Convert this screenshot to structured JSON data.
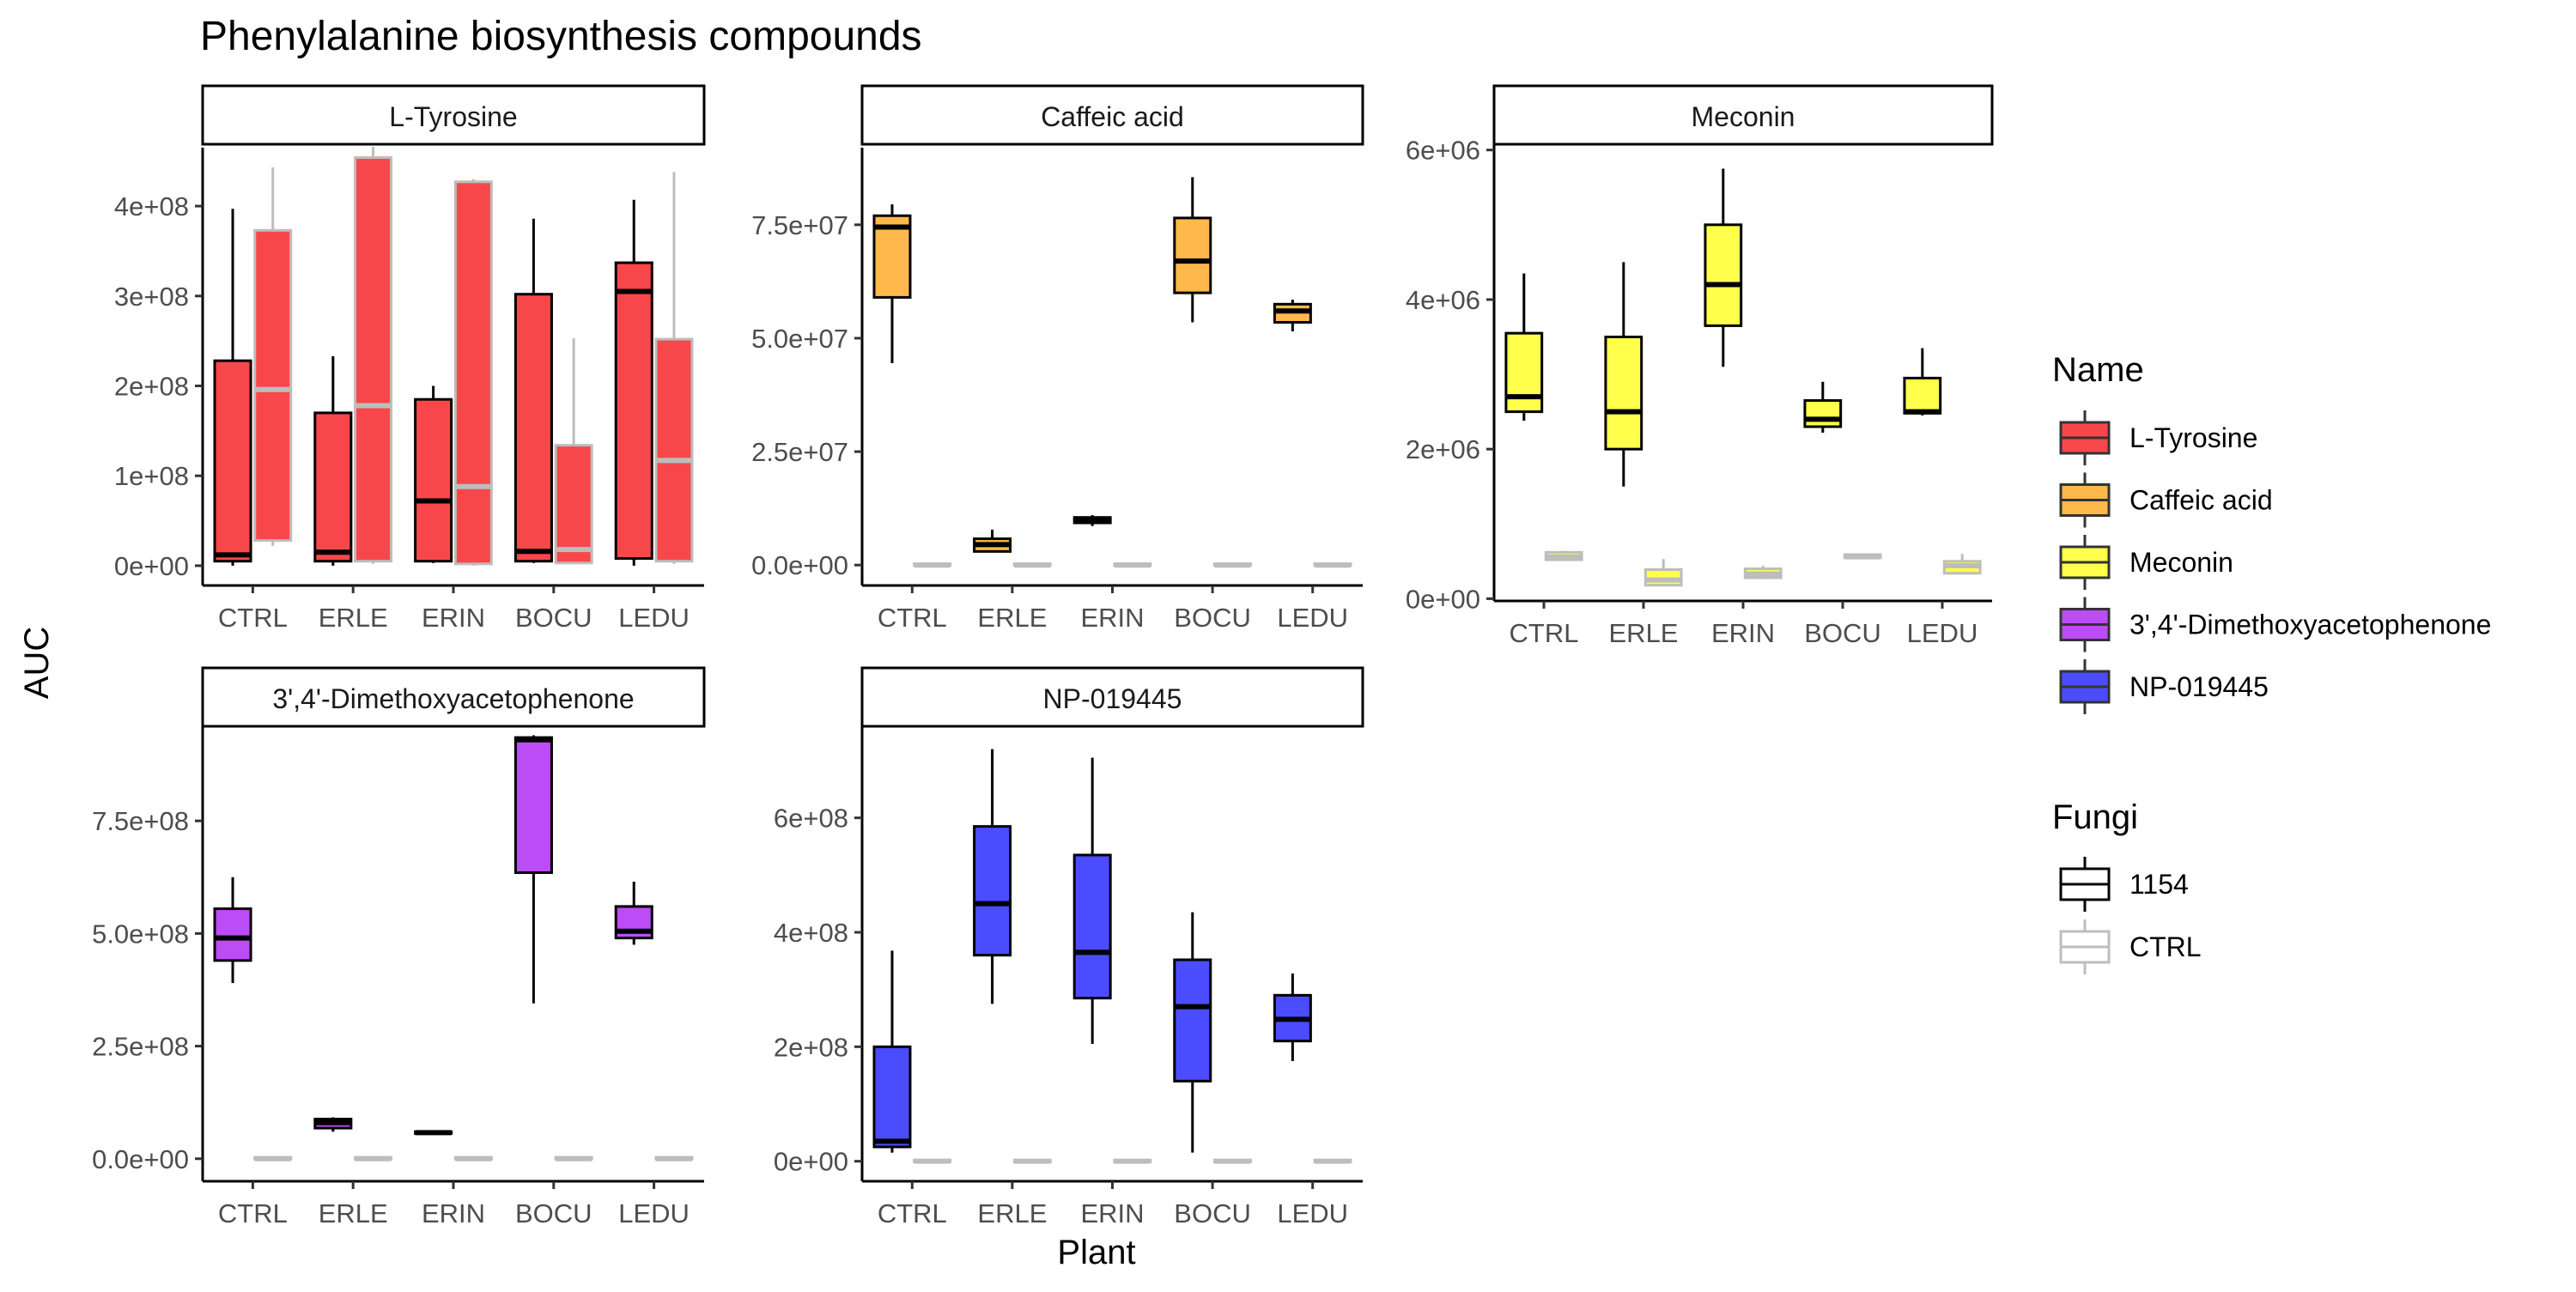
{
  "chart_data": {
    "type": "box",
    "title": "Phenylalanine biosynthesis compounds",
    "xlabel": "Plant",
    "ylabel": "AUC",
    "categories": [
      "CTRL",
      "ERLE",
      "ERIN",
      "BOCU",
      "LEDU"
    ],
    "grid": false,
    "legend_position": "right",
    "legends": {
      "name": {
        "title": "Name",
        "entries": [
          {
            "label": "L-Tyrosine",
            "color": "#F8474A"
          },
          {
            "label": "Caffeic acid",
            "color": "#FFB84C"
          },
          {
            "label": "Meconin",
            "color": "#FFFF4C"
          },
          {
            "label": "3',4'-Dimethoxyacetophenone",
            "color": "#BC4CF5"
          },
          {
            "label": "NP-019445",
            "color": "#4C4CFF"
          }
        ]
      },
      "fungi": {
        "title": "Fungi",
        "entries": [
          {
            "label": "1154",
            "color": "#000000"
          },
          {
            "label": "CTRL",
            "color": "#BDBDBD"
          }
        ]
      }
    },
    "panels": [
      {
        "name": "L-Tyrosine",
        "fill": "#F8474A",
        "ylim": [
          -22000000.0,
          465000000.0
        ],
        "yticks": [
          0,
          100000000,
          200000000,
          300000000,
          400000000
        ],
        "ytick_labels": [
          "0e+00",
          "1e+08",
          "2e+08",
          "3e+08",
          "4e+08"
        ],
        "series": [
          {
            "fungi": "1154",
            "boxes": [
              {
                "category": "CTRL",
                "min": 0,
                "q1": 5000000,
                "median": 12000000,
                "q3": 228000000,
                "max": 397000000
              },
              {
                "category": "ERLE",
                "min": 0,
                "q1": 5000000,
                "median": 15000000,
                "q3": 170000000,
                "max": 233000000
              },
              {
                "category": "ERIN",
                "min": 3000000,
                "q1": 5000000,
                "median": 72000000,
                "q3": 185000000,
                "max": 200000000
              },
              {
                "category": "BOCU",
                "min": 3000000,
                "q1": 5000000,
                "median": 16000000,
                "q3": 302000000,
                "max": 386000000
              },
              {
                "category": "LEDU",
                "min": 0,
                "q1": 8000000,
                "median": 305000000,
                "q3": 337000000,
                "max": 407000000
              }
            ]
          },
          {
            "fungi": "CTRL",
            "boxes": [
              {
                "category": "CTRL",
                "min": 22000000,
                "q1": 28000000,
                "median": 196000000,
                "q3": 373000000,
                "max": 443000000
              },
              {
                "category": "ERLE",
                "min": 2000000,
                "q1": 5000000,
                "median": 178000000,
                "q3": 454000000,
                "max": 466000000
              },
              {
                "category": "ERIN",
                "min": 0,
                "q1": 2000000,
                "median": 88000000,
                "q3": 427000000,
                "max": 430000000
              },
              {
                "category": "BOCU",
                "min": 2000000,
                "q1": 3000000,
                "median": 18000000,
                "q3": 134000000,
                "max": 253000000
              },
              {
                "category": "LEDU",
                "min": 2000000,
                "q1": 5000000,
                "median": 117000000,
                "q3": 252000000,
                "max": 438000000
              }
            ]
          }
        ]
      },
      {
        "name": "Caffeic acid",
        "fill": "#FFB84C",
        "ylim": [
          -4500000.0,
          92000000.0
        ],
        "yticks": [
          0,
          25000000,
          50000000,
          75000000
        ],
        "ytick_labels": [
          "0.0e+00",
          "2.5e+07",
          "5.0e+07",
          "7.5e+07"
        ],
        "series": [
          {
            "fungi": "1154",
            "boxes": [
              {
                "category": "CTRL",
                "min": 44500000,
                "q1": 59000000,
                "median": 74500000,
                "q3": 77000000,
                "max": 79500000
              },
              {
                "category": "ERLE",
                "min": 2800000,
                "q1": 3000000,
                "median": 4500000,
                "q3": 5800000,
                "max": 7800000
              },
              {
                "category": "ERIN",
                "min": 8600000,
                "q1": 9300000,
                "median": 9800000,
                "q3": 10500000,
                "max": 11000000
              },
              {
                "category": "BOCU",
                "min": 53500000,
                "q1": 60000000,
                "median": 67000000,
                "q3": 76500000,
                "max": 85500000
              },
              {
                "category": "LEDU",
                "min": 51500000,
                "q1": 53500000,
                "median": 56000000,
                "q3": 57500000,
                "max": 58500000
              }
            ]
          },
          {
            "fungi": "CTRL",
            "boxes": [
              {
                "category": "CTRL",
                "min": 0,
                "q1": 0,
                "median": 0,
                "q3": 300000,
                "max": 300000
              },
              {
                "category": "ERLE",
                "min": 0,
                "q1": 0,
                "median": 0,
                "q3": 300000,
                "max": 300000
              },
              {
                "category": "ERIN",
                "min": 0,
                "q1": 0,
                "median": 0,
                "q3": 300000,
                "max": 300000
              },
              {
                "category": "BOCU",
                "min": 0,
                "q1": 0,
                "median": 0,
                "q3": 300000,
                "max": 300000
              },
              {
                "category": "LEDU",
                "min": 0,
                "q1": 0,
                "median": 0,
                "q3": 300000,
                "max": 300000
              }
            ]
          }
        ]
      },
      {
        "name": "Meconin",
        "fill": "#FFFF4C",
        "ylim": [
          -30000.0,
          6100000.0
        ],
        "yticks": [
          0,
          2000000,
          4000000,
          6000000
        ],
        "ytick_labels": [
          "0e+00",
          "2e+06",
          "4e+06",
          "6e+06"
        ],
        "series": [
          {
            "fungi": "1154",
            "boxes": [
              {
                "category": "CTRL",
                "min": 2380000,
                "q1": 2500000,
                "median": 2700000,
                "q3": 3550000,
                "max": 4350000
              },
              {
                "category": "ERLE",
                "min": 1500000,
                "q1": 2000000,
                "median": 2500000,
                "q3": 3500000,
                "max": 4500000
              },
              {
                "category": "ERIN",
                "min": 3100000,
                "q1": 3650000,
                "median": 4200000,
                "q3": 5000000,
                "max": 5750000
              },
              {
                "category": "BOCU",
                "min": 2220000,
                "q1": 2300000,
                "median": 2400000,
                "q3": 2650000,
                "max": 2900000
              },
              {
                "category": "LEDU",
                "min": 2450000,
                "q1": 2480000,
                "median": 2500000,
                "q3": 2950000,
                "max": 3350000
              }
            ]
          },
          {
            "fungi": "CTRL",
            "boxes": [
              {
                "category": "CTRL",
                "min": 520000,
                "q1": 520000,
                "median": 560000,
                "q3": 620000,
                "max": 640000
              },
              {
                "category": "ERLE",
                "min": 180000,
                "q1": 180000,
                "median": 250000,
                "q3": 390000,
                "max": 530000
              },
              {
                "category": "ERIN",
                "min": 260000,
                "q1": 280000,
                "median": 330000,
                "q3": 400000,
                "max": 440000
              },
              {
                "category": "BOCU",
                "min": 550000,
                "q1": 550000,
                "median": 560000,
                "q3": 590000,
                "max": 600000
              },
              {
                "category": "LEDU",
                "min": 330000,
                "q1": 340000,
                "median": 440000,
                "q3": 500000,
                "max": 600000
              }
            ]
          }
        ]
      },
      {
        "name": "3',4'-Dimethoxyacetophenone",
        "fill": "#BC4CF5",
        "ylim": [
          -50000000.0,
          960000000.0
        ],
        "yticks": [
          0,
          250000000,
          500000000,
          750000000
        ],
        "ytick_labels": [
          "0.0e+00",
          "2.5e+08",
          "5.0e+08",
          "7.5e+08"
        ],
        "series": [
          {
            "fungi": "1154",
            "boxes": [
              {
                "category": "CTRL",
                "min": 390000000,
                "q1": 440000000,
                "median": 490000000,
                "q3": 555000000,
                "max": 625000000
              },
              {
                "category": "ERLE",
                "min": 60000000,
                "q1": 68000000,
                "median": 80000000,
                "q3": 88000000,
                "max": 92000000
              },
              {
                "category": "ERIN",
                "min": 55000000,
                "q1": 56000000,
                "median": 58000000,
                "q3": 60000000,
                "max": 62000000
              },
              {
                "category": "BOCU",
                "min": 345000000,
                "q1": 635000000,
                "median": 930000000,
                "q3": 935000000,
                "max": 940000000
              },
              {
                "category": "LEDU",
                "min": 475000000,
                "q1": 490000000,
                "median": 505000000,
                "q3": 560000000,
                "max": 615000000
              }
            ]
          },
          {
            "fungi": "CTRL",
            "boxes": [
              {
                "category": "CTRL",
                "min": 0,
                "q1": 0,
                "median": 0,
                "q3": 3000000,
                "max": 3000000
              },
              {
                "category": "ERLE",
                "min": 0,
                "q1": 0,
                "median": 0,
                "q3": 3000000,
                "max": 3000000
              },
              {
                "category": "ERIN",
                "min": 0,
                "q1": 0,
                "median": 0,
                "q3": 3000000,
                "max": 3000000
              },
              {
                "category": "BOCU",
                "min": 0,
                "q1": 0,
                "median": 0,
                "q3": 3000000,
                "max": 3000000
              },
              {
                "category": "LEDU",
                "min": 0,
                "q1": 0,
                "median": 0,
                "q3": 3000000,
                "max": 3000000
              }
            ]
          }
        ]
      },
      {
        "name": "NP-019445",
        "fill": "#4C4CFF",
        "ylim": [
          -35000000.0,
          760000000.0
        ],
        "yticks": [
          0,
          200000000,
          400000000,
          600000000
        ],
        "ytick_labels": [
          "0e+00",
          "2e+08",
          "4e+08",
          "6e+08"
        ],
        "series": [
          {
            "fungi": "1154",
            "boxes": [
              {
                "category": "CTRL",
                "min": 15000000,
                "q1": 25000000,
                "median": 35000000,
                "q3": 200000000,
                "max": 368000000
              },
              {
                "category": "ERLE",
                "min": 275000000,
                "q1": 360000000,
                "median": 450000000,
                "q3": 585000000,
                "max": 720000000
              },
              {
                "category": "ERIN",
                "min": 205000000,
                "q1": 285000000,
                "median": 365000000,
                "q3": 535000000,
                "max": 705000000
              },
              {
                "category": "BOCU",
                "min": 15000000,
                "q1": 140000000,
                "median": 270000000,
                "q3": 352000000,
                "max": 435000000
              },
              {
                "category": "LEDU",
                "min": 175000000,
                "q1": 210000000,
                "median": 248000000,
                "q3": 290000000,
                "max": 328000000
              }
            ]
          },
          {
            "fungi": "CTRL",
            "boxes": [
              {
                "category": "CTRL",
                "min": 0,
                "q1": 0,
                "median": 0,
                "q3": 2000000,
                "max": 2000000
              },
              {
                "category": "ERLE",
                "min": 0,
                "q1": 0,
                "median": 0,
                "q3": 2000000,
                "max": 2000000
              },
              {
                "category": "ERIN",
                "min": 0,
                "q1": 0,
                "median": 0,
                "q3": 2000000,
                "max": 2000000
              },
              {
                "category": "BOCU",
                "min": 0,
                "q1": 0,
                "median": 0,
                "q3": 2000000,
                "max": 2000000
              },
              {
                "category": "LEDU",
                "min": 0,
                "q1": 0,
                "median": 0,
                "q3": 2000000,
                "max": 2000000
              }
            ]
          }
        ]
      }
    ]
  }
}
